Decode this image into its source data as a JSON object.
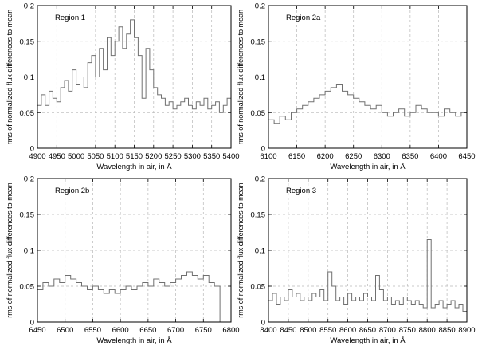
{
  "figure": {
    "ylabel": "rms of normalized flux differences to mean",
    "xlabel": "Wavelength in air, in Å"
  },
  "chart_data": [
    {
      "type": "line",
      "title": "Region 1",
      "xlabel": "Wavelength in air, in Å",
      "ylabel": "rms of normalized flux differences to mean",
      "xlim": [
        4900,
        5400
      ],
      "ylim": [
        0,
        0.2
      ],
      "xticks": [
        4900,
        4950,
        5000,
        5050,
        5100,
        5150,
        5200,
        5250,
        5300,
        5350,
        5400
      ],
      "yticks": [
        0,
        0.05,
        0.1,
        0.15,
        0.2
      ],
      "ytick_labels": [
        "0",
        "0.05",
        "0.1",
        "0.15",
        "0.2"
      ],
      "grid": true,
      "step": true,
      "x": [
        4900,
        4910,
        4920,
        4930,
        4940,
        4950,
        4960,
        4970,
        4980,
        4990,
        5000,
        5010,
        5020,
        5030,
        5040,
        5050,
        5060,
        5070,
        5080,
        5090,
        5100,
        5110,
        5120,
        5130,
        5140,
        5150,
        5160,
        5170,
        5180,
        5190,
        5200,
        5210,
        5220,
        5230,
        5240,
        5250,
        5260,
        5270,
        5280,
        5290,
        5300,
        5310,
        5320,
        5330,
        5340,
        5350,
        5360,
        5370,
        5380,
        5390,
        5400
      ],
      "y": [
        0.06,
        0.075,
        0.06,
        0.08,
        0.07,
        0.065,
        0.085,
        0.095,
        0.08,
        0.11,
        0.09,
        0.1,
        0.085,
        0.12,
        0.13,
        0.1,
        0.14,
        0.11,
        0.155,
        0.13,
        0.15,
        0.17,
        0.14,
        0.16,
        0.18,
        0.155,
        0.13,
        0.07,
        0.14,
        0.11,
        0.085,
        0.075,
        0.07,
        0.06,
        0.065,
        0.055,
        0.06,
        0.065,
        0.07,
        0.06,
        0.055,
        0.065,
        0.06,
        0.07,
        0.055,
        0.06,
        0.065,
        0.05,
        0.06,
        0.07,
        0.065
      ]
    },
    {
      "type": "line",
      "title": "Region 2a",
      "xlabel": "Wavelength in air, in Å",
      "ylabel": "rms of normalized flux differences to mean",
      "xlim": [
        6100,
        6450
      ],
      "ylim": [
        0,
        0.2
      ],
      "xticks": [
        6100,
        6150,
        6200,
        6250,
        6300,
        6350,
        6400,
        6450
      ],
      "yticks": [
        0,
        0.05,
        0.1,
        0.15,
        0.2
      ],
      "ytick_labels": [
        "0",
        "0.05",
        "0.1",
        "0.15",
        "0.2"
      ],
      "grid": true,
      "step": true,
      "x": [
        6100,
        6110,
        6120,
        6130,
        6140,
        6150,
        6160,
        6170,
        6180,
        6190,
        6200,
        6210,
        6220,
        6230,
        6240,
        6250,
        6260,
        6270,
        6280,
        6290,
        6300,
        6310,
        6320,
        6330,
        6340,
        6350,
        6360,
        6370,
        6380,
        6390,
        6400,
        6410,
        6420,
        6430,
        6440,
        6450
      ],
      "y": [
        0.04,
        0.035,
        0.045,
        0.04,
        0.05,
        0.055,
        0.06,
        0.065,
        0.07,
        0.075,
        0.08,
        0.085,
        0.09,
        0.08,
        0.075,
        0.07,
        0.065,
        0.06,
        0.055,
        0.06,
        0.05,
        0.045,
        0.05,
        0.055,
        0.045,
        0.05,
        0.06,
        0.055,
        0.05,
        0.05,
        0.045,
        0.055,
        0.05,
        0.045,
        0.05,
        0.04
      ]
    },
    {
      "type": "line",
      "title": "Region 2b",
      "xlabel": "Wavelength in air, in Å",
      "ylabel": "rms of normalized flux differences to mean",
      "xlim": [
        6450,
        6800
      ],
      "ylim": [
        0,
        0.2
      ],
      "xticks": [
        6450,
        6500,
        6550,
        6600,
        6650,
        6700,
        6750,
        6800
      ],
      "yticks": [
        0,
        0.05,
        0.1,
        0.15,
        0.2
      ],
      "ytick_labels": [
        "0",
        "0.05",
        "0.1",
        "0.15",
        "0.2"
      ],
      "grid": true,
      "step": true,
      "x": [
        6450,
        6460,
        6470,
        6480,
        6490,
        6500,
        6510,
        6520,
        6530,
        6540,
        6550,
        6560,
        6570,
        6580,
        6590,
        6600,
        6610,
        6620,
        6630,
        6640,
        6650,
        6660,
        6670,
        6680,
        6690,
        6700,
        6710,
        6720,
        6730,
        6740,
        6750,
        6760,
        6770,
        6780
      ],
      "y": [
        0.045,
        0.055,
        0.05,
        0.06,
        0.055,
        0.065,
        0.06,
        0.055,
        0.05,
        0.045,
        0.05,
        0.045,
        0.04,
        0.045,
        0.04,
        0.045,
        0.05,
        0.045,
        0.05,
        0.055,
        0.05,
        0.06,
        0.055,
        0.05,
        0.055,
        0.06,
        0.065,
        0.07,
        0.065,
        0.06,
        0.065,
        0.055,
        0.05,
        0.0
      ]
    },
    {
      "type": "line",
      "title": "Region 3",
      "xlabel": "Wavelength in air, in Å",
      "ylabel": "rms of normalized flux differences to mean",
      "xlim": [
        8400,
        8900
      ],
      "ylim": [
        0,
        0.2
      ],
      "xticks": [
        8400,
        8450,
        8500,
        8550,
        8600,
        8650,
        8700,
        8750,
        8800,
        8850,
        8900
      ],
      "yticks": [
        0,
        0.05,
        0.1,
        0.15,
        0.2
      ],
      "ytick_labels": [
        "0",
        "0.05",
        "0.1",
        "0.15",
        "0.2"
      ],
      "grid": true,
      "step": true,
      "x": [
        8400,
        8410,
        8420,
        8430,
        8440,
        8450,
        8460,
        8470,
        8480,
        8490,
        8500,
        8510,
        8520,
        8530,
        8540,
        8550,
        8560,
        8570,
        8580,
        8590,
        8600,
        8610,
        8620,
        8630,
        8640,
        8650,
        8660,
        8670,
        8680,
        8690,
        8700,
        8710,
        8720,
        8730,
        8740,
        8750,
        8760,
        8770,
        8780,
        8790,
        8800,
        8810,
        8820,
        8830,
        8840,
        8850,
        8860,
        8870,
        8880,
        8890,
        8900
      ],
      "y": [
        0.03,
        0.04,
        0.025,
        0.035,
        0.03,
        0.045,
        0.035,
        0.04,
        0.03,
        0.035,
        0.03,
        0.04,
        0.035,
        0.045,
        0.03,
        0.07,
        0.05,
        0.03,
        0.035,
        0.025,
        0.04,
        0.03,
        0.035,
        0.03,
        0.04,
        0.035,
        0.03,
        0.065,
        0.045,
        0.03,
        0.035,
        0.025,
        0.03,
        0.025,
        0.035,
        0.03,
        0.025,
        0.03,
        0.025,
        0.02,
        0.115,
        0.02,
        0.025,
        0.03,
        0.02,
        0.025,
        0.03,
        0.02,
        0.025,
        0.015,
        0.02
      ]
    }
  ]
}
